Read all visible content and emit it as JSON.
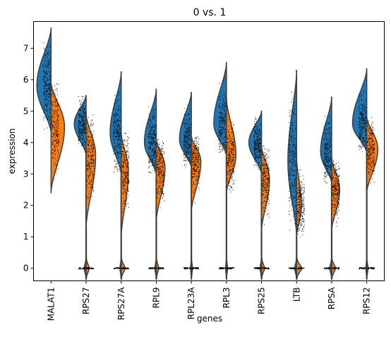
{
  "chart_data": {
    "type": "split-violin",
    "title": "0 vs. 1",
    "xlabel": "genes",
    "ylabel": "expression",
    "ylim": [
      -0.4,
      7.85
    ],
    "yticks": [
      0,
      1,
      2,
      3,
      4,
      5,
      6,
      7
    ],
    "grid": false,
    "legend": "none",
    "series": [
      {
        "name": "0",
        "color": "#1f77b4",
        "side": "left"
      },
      {
        "name": "1",
        "color": "#ff7f0e",
        "side": "right"
      }
    ],
    "genes": [
      {
        "name": "MALAT1",
        "s0": {
          "min": 4.3,
          "max": 7.65,
          "mode": 5.8,
          "zero": 0,
          "width": 0.9
        },
        "s1": {
          "min": 2.4,
          "max": 5.9,
          "mode": 4.5,
          "zero": 0,
          "width": 0.85
        }
      },
      {
        "name": "RPS27",
        "s0": {
          "min": 3.6,
          "max": 5.5,
          "mode": 4.6,
          "zero": 0.15,
          "width": 0.75
        },
        "s1": {
          "min": 1.3,
          "max": 4.9,
          "mode": 3.6,
          "zero": 0.3,
          "width": 0.6
        }
      },
      {
        "name": "RPS27A",
        "s0": {
          "min": 3.0,
          "max": 6.25,
          "mode": 4.3,
          "zero": 0.1,
          "width": 0.7
        },
        "s1": {
          "min": 1.0,
          "max": 4.3,
          "mode": 3.1,
          "zero": 0.5,
          "width": 0.45
        }
      },
      {
        "name": "RPL9",
        "s0": {
          "min": 3.0,
          "max": 5.7,
          "mode": 4.0,
          "zero": 0.1,
          "width": 0.75
        },
        "s1": {
          "min": 1.5,
          "max": 4.1,
          "mode": 3.2,
          "zero": 0.25,
          "width": 0.55
        }
      },
      {
        "name": "RPL23A",
        "s0": {
          "min": 3.2,
          "max": 5.6,
          "mode": 4.1,
          "zero": 0.05,
          "width": 0.75
        },
        "s1": {
          "min": 1.8,
          "max": 4.2,
          "mode": 3.4,
          "zero": 0.1,
          "width": 0.6
        }
      },
      {
        "name": "RPL3",
        "s0": {
          "min": 3.6,
          "max": 6.55,
          "mode": 4.6,
          "zero": 0.05,
          "width": 0.8
        },
        "s1": {
          "min": 2.4,
          "max": 5.4,
          "mode": 3.6,
          "zero": 0.1,
          "width": 0.6
        }
      },
      {
        "name": "RPS25",
        "s0": {
          "min": 3.0,
          "max": 5.0,
          "mode": 4.0,
          "zero": 0.1,
          "width": 0.8
        },
        "s1": {
          "min": 1.2,
          "max": 3.9,
          "mode": 2.8,
          "zero": 0.35,
          "width": 0.5
        }
      },
      {
        "name": "LTB",
        "s0": {
          "min": 1.0,
          "max": 6.3,
          "mode": 3.4,
          "zero": 0.2,
          "width": 0.55
        },
        "s1": {
          "min": 1.0,
          "max": 3.5,
          "mode": 2.0,
          "zero": 1.0,
          "width": 0.3
        }
      },
      {
        "name": "RPSA",
        "s0": {
          "min": 2.7,
          "max": 5.45,
          "mode": 3.7,
          "zero": 0.15,
          "width": 0.7
        },
        "s1": {
          "min": 1.2,
          "max": 3.5,
          "mode": 2.5,
          "zero": 0.45,
          "width": 0.5
        }
      },
      {
        "name": "RPS12",
        "s0": {
          "min": 3.7,
          "max": 6.35,
          "mode": 4.6,
          "zero": 0.05,
          "width": 0.9
        },
        "s1": {
          "min": 2.4,
          "max": 4.8,
          "mode": 3.8,
          "zero": 0.1,
          "width": 0.7
        }
      }
    ]
  }
}
